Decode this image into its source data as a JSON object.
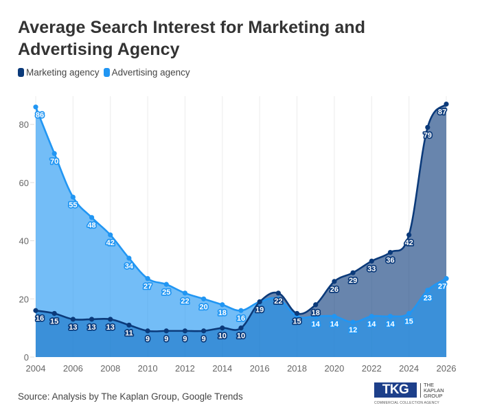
{
  "chart_data": {
    "type": "area",
    "title": "Average Search Interest for Marketing and Advertising Agency",
    "xlabel": "",
    "ylabel": "",
    "x": [
      2004,
      2005,
      2006,
      2007,
      2008,
      2009,
      2010,
      2011,
      2012,
      2013,
      2014,
      2015,
      2016,
      2017,
      2018,
      2019,
      2020,
      2021,
      2022,
      2023,
      2024,
      2025,
      2026
    ],
    "xticks": [
      "2004",
      "2006",
      "2008",
      "2010",
      "2012",
      "2014",
      "2016",
      "2018",
      "2020",
      "2022",
      "2024",
      "2026"
    ],
    "yticks": [
      "0",
      "20",
      "40",
      "60",
      "80"
    ],
    "ylim": [
      0,
      90
    ],
    "xlim": [
      2004,
      2026
    ],
    "grid": "vertical",
    "legend_position": "top-left",
    "series": [
      {
        "name": "Marketing agency",
        "color": "#0b3a7a",
        "values": [
          16,
          15,
          13,
          13,
          13,
          11,
          9,
          9,
          9,
          9,
          10,
          10,
          19,
          22,
          15,
          18,
          26,
          29,
          33,
          36,
          42,
          79,
          87
        ],
        "labels_shown": [
          true,
          true,
          true,
          true,
          true,
          true,
          true,
          true,
          true,
          true,
          true,
          true,
          true,
          true,
          true,
          true,
          true,
          true,
          true,
          true,
          true,
          true,
          true
        ]
      },
      {
        "name": "Advertising agency",
        "color": "#2196f3",
        "values": [
          86,
          70,
          55,
          48,
          42,
          34,
          27,
          25,
          22,
          20,
          18,
          16,
          19,
          20,
          14,
          14,
          14,
          12,
          14,
          14,
          15,
          23,
          27
        ],
        "labels_shown": [
          true,
          true,
          true,
          true,
          true,
          true,
          true,
          true,
          true,
          true,
          true,
          true,
          false,
          false,
          false,
          true,
          true,
          true,
          true,
          true,
          true,
          true,
          true
        ]
      }
    ]
  },
  "header": {
    "title": "Average Search Interest for Marketing and Advertising Agency"
  },
  "legend": {
    "items": [
      {
        "label": "Marketing agency",
        "color": "#0b3a7a"
      },
      {
        "label": "Advertising agency",
        "color": "#2196f3"
      }
    ]
  },
  "footer": {
    "source": "Source: Analysis by The Kaplan Group, Google Trends",
    "logo_mark": "TKG",
    "logo_name_lines": [
      "THE",
      "KAPLAN",
      "GROUP"
    ],
    "logo_tagline": "COMMERCIAL COLLECTION AGENCY"
  }
}
